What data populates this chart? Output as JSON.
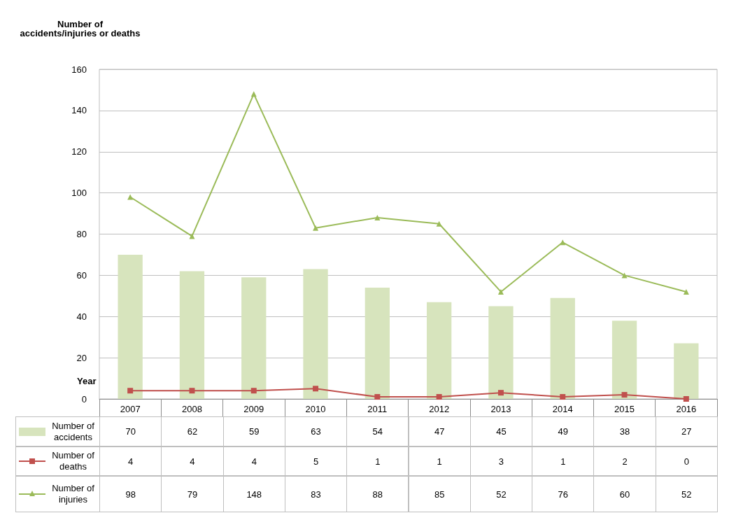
{
  "chart_data": {
    "type": "bar",
    "ylabel": "Number of\naccidents/injuries or deaths",
    "xlabel": "Year",
    "categories": [
      "2007",
      "2008",
      "2009",
      "2010",
      "2011",
      "2012",
      "2013",
      "2014",
      "2015",
      "2016"
    ],
    "series": [
      {
        "name": "Number of accidents",
        "color": "#d7e4bd",
        "values": [
          70,
          62,
          59,
          63,
          54,
          47,
          45,
          49,
          38,
          27
        ]
      },
      {
        "name": "Number of deaths",
        "type": "line",
        "color": "#c0504d",
        "marker": "square",
        "values": [
          4,
          4,
          4,
          5,
          1,
          1,
          3,
          1,
          2,
          0
        ]
      },
      {
        "name": "Number of injuries",
        "type": "line",
        "color": "#9bbb59",
        "marker": "triangle",
        "values": [
          98,
          79,
          148,
          83,
          88,
          85,
          52,
          76,
          60,
          52
        ]
      }
    ],
    "ylim": [
      0,
      160
    ],
    "yticks": [
      0,
      20,
      40,
      60,
      80,
      100,
      120,
      140,
      160
    ],
    "grid": "y",
    "legend": "bottom",
    "data_labels": true
  }
}
